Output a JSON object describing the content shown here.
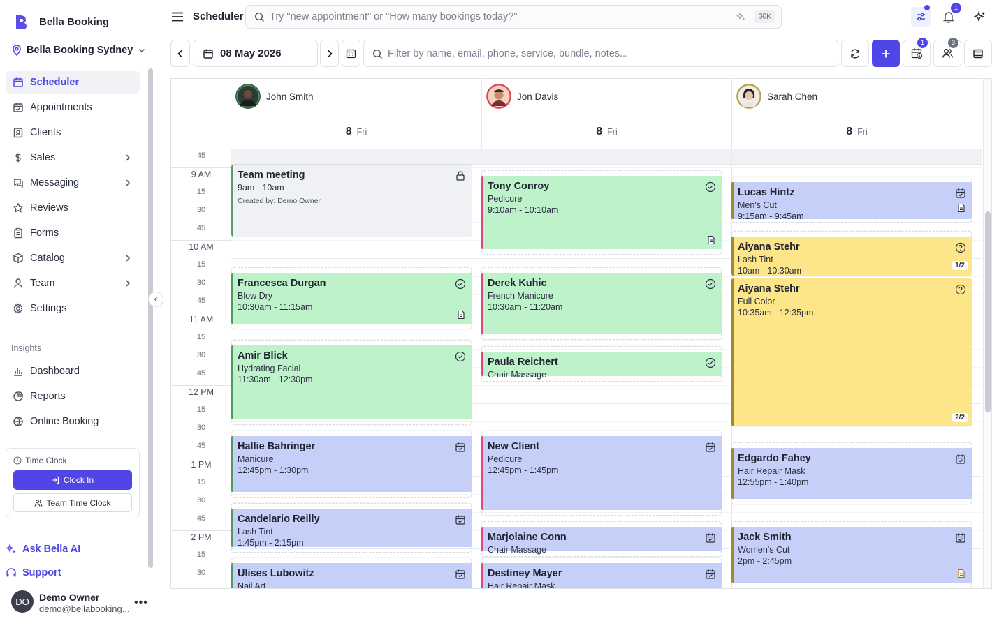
{
  "brand": {
    "name": "Bella Booking"
  },
  "location": {
    "name": "Bella Booking Sydney"
  },
  "nav": [
    {
      "label": "Scheduler",
      "icon": "calendar-icon",
      "active": true
    },
    {
      "label": "Appointments",
      "icon": "calendar-check-icon"
    },
    {
      "label": "Clients",
      "icon": "contact-icon"
    },
    {
      "label": "Sales",
      "icon": "dollar-icon",
      "expand": true
    },
    {
      "label": "Messaging",
      "icon": "message-icon",
      "expand": true
    },
    {
      "label": "Reviews",
      "icon": "star-icon"
    },
    {
      "label": "Forms",
      "icon": "clipboard-icon"
    },
    {
      "label": "Catalog",
      "icon": "box-icon",
      "expand": true
    },
    {
      "label": "Team",
      "icon": "user-icon",
      "expand": true
    },
    {
      "label": "Settings",
      "icon": "gear-icon"
    }
  ],
  "insights": {
    "label": "Insights",
    "items": [
      {
        "label": "Dashboard",
        "icon": "bar-chart-icon"
      },
      {
        "label": "Reports",
        "icon": "pie-chart-icon"
      },
      {
        "label": "Online Booking",
        "icon": "globe-icon"
      }
    ]
  },
  "time_clock": {
    "title": "Time Clock",
    "clock_in": "Clock In",
    "team": "Team Time Clock"
  },
  "ask_bella": "Ask Bella AI",
  "support": "Support",
  "user": {
    "initials": "DO",
    "name": "Demo Owner",
    "email": "demo@bellabooking..."
  },
  "topbar": {
    "title": "Scheduler",
    "search_placeholder": "Try \"new appointment\" or \"How many bookings today?\"",
    "shortcut": "⌘K",
    "notifications_count": "1"
  },
  "toolbar": {
    "date": "08 May 2026",
    "filter_placeholder": "Filter by name, email, phone, service, bundle, notes...",
    "waitlist_count": "1",
    "staff_count": "3"
  },
  "calendar": {
    "staff": [
      {
        "name": "John Smith",
        "day_num": "8",
        "day_name": "Fri"
      },
      {
        "name": "Jon Davis",
        "day_num": "8",
        "day_name": "Fri"
      },
      {
        "name": "Sarah Chen",
        "day_num": "8",
        "day_name": "Fri"
      }
    ],
    "time_labels": [
      "45",
      "9 AM",
      "15",
      "30",
      "45",
      "10 AM",
      "15",
      "30",
      "45",
      "11 AM",
      "15",
      "30",
      "45",
      "12 PM",
      "15",
      "30",
      "45",
      "1 PM",
      "15",
      "30",
      "45",
      "2 PM",
      "15",
      "30"
    ],
    "appointments": [
      {
        "name": "Team meeting",
        "service": "9am - 10am",
        "time": "",
        "note": "Created by: Demo Owner",
        "status": "lock-icon"
      },
      {
        "name": "Francesca Durgan",
        "service": "Blow Dry",
        "time": "10:30am - 11:15am",
        "status": "check-circle-icon"
      },
      {
        "name": "Amir Blick",
        "service": "Hydrating Facial",
        "time": "11:30am - 12:30pm",
        "status": "check-circle-icon"
      },
      {
        "name": "Hallie Bahringer",
        "service": "Manicure",
        "time": "12:45pm - 1:30pm",
        "status": "calendar-check-icon"
      },
      {
        "name": "Candelario Reilly",
        "service": "Lash Tint",
        "time": "1:45pm - 2:15pm",
        "status": "calendar-check-icon"
      },
      {
        "name": "Ulises Lubowitz",
        "service": "Nail Art",
        "time": "",
        "status": "calendar-check-icon"
      },
      {
        "name": "Tony Conroy",
        "service": "Pedicure",
        "time": "9:10am - 10:10am",
        "status": "check-circle-icon"
      },
      {
        "name": "Derek Kuhic",
        "service": "French Manicure",
        "time": "10:30am - 11:20am",
        "status": "check-circle-icon"
      },
      {
        "name": "Paula Reichert",
        "service": "Chair Massage",
        "time": "",
        "status": "check-circle-icon"
      },
      {
        "name": "New Client",
        "service": "Pedicure",
        "time": "12:45pm - 1:45pm",
        "status": "calendar-check-icon"
      },
      {
        "name": "Marjolaine Conn",
        "service": "Chair Massage",
        "time": "",
        "status": "calendar-check-icon"
      },
      {
        "name": "Destiney Mayer",
        "service": "Hair Repair Mask",
        "time": "",
        "status": "calendar-check-icon"
      },
      {
        "name": "Lucas Hintz",
        "service": "Men's Cut",
        "time": "9:15am - 9:45am",
        "status": "calendar-check-icon"
      },
      {
        "name": "Aiyana Stehr",
        "service": "Lash Tint",
        "time": "10am - 10:30am",
        "status": "question-circle-icon",
        "fraction": "1/2"
      },
      {
        "name": "Aiyana Stehr",
        "service": "Full Color",
        "time": "10:35am - 12:35pm",
        "status": "question-circle-icon",
        "fraction": "2/2"
      },
      {
        "name": "Edgardo Fahey",
        "service": "Hair Repair Mask",
        "time": "12:55pm - 1:40pm",
        "status": "calendar-check-icon"
      },
      {
        "name": "Jack Smith",
        "service": "Women's Cut",
        "time": "2pm - 2:45pm",
        "status": "calendar-check-icon"
      }
    ]
  },
  "colors": {
    "accent": "#4f46e5",
    "confirmed": "#bdf2cb",
    "booked": "#c6cff8",
    "pending": "#fde68a"
  }
}
